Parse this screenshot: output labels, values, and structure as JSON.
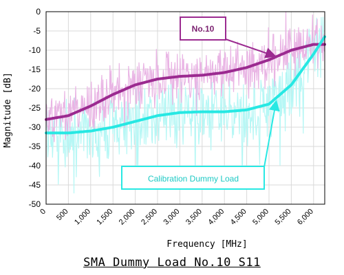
{
  "chart_data": {
    "type": "line",
    "xlabel": "Frequency [MHz]",
    "ylabel": "Magnitude [dB]",
    "xlim": [
      0,
      6250
    ],
    "ylim": [
      -50,
      0
    ],
    "x_ticks": [
      0,
      500,
      1000,
      1500,
      2000,
      2500,
      3000,
      3500,
      4000,
      4500,
      5000,
      5500,
      6000
    ],
    "x_tick_labels": [
      "0",
      "500",
      "1,000",
      "1,500",
      "2,000",
      "2,500",
      "3,000",
      "3,500",
      "4,000",
      "4,500",
      "5,000",
      "5,500",
      "6,000"
    ],
    "y_ticks": [
      0,
      -5,
      -10,
      -15,
      -20,
      -25,
      -30,
      -35,
      -40,
      -45,
      -50
    ],
    "y_tick_labels": [
      "0",
      "-5",
      "-10",
      "-15",
      "-20",
      "-25",
      "-30",
      "-35",
      "-40",
      "-45",
      "-50"
    ],
    "grid": true,
    "series": [
      {
        "name": "No.10",
        "color": "#9b2a90",
        "raw_color": "#e9b4e4",
        "x": [
          0,
          500,
          1000,
          1500,
          2000,
          2500,
          3000,
          3500,
          4000,
          4500,
          5000,
          5500,
          6000,
          6250
        ],
        "values": [
          -28,
          -27,
          -24.5,
          -21.5,
          -19,
          -17.5,
          -16.8,
          -16.5,
          -15.8,
          -14.5,
          -12.5,
          -10,
          -8.5,
          -8.5
        ]
      },
      {
        "name": "Calibration Dummy Load",
        "color": "#27e8e3",
        "raw_color": "#b6f7f5",
        "x": [
          0,
          500,
          1000,
          1500,
          2000,
          2500,
          3000,
          3500,
          4000,
          4500,
          5000,
          5500,
          6000,
          6250
        ],
        "values": [
          -31.5,
          -31.5,
          -31,
          -30,
          -28.5,
          -27,
          -26.2,
          -26,
          -26,
          -25.5,
          -24,
          -19,
          -11,
          -6.5
        ]
      }
    ],
    "annotations": [
      "No.10",
      "Calibration Dummy Load"
    ]
  },
  "bottom_title": "SMA Dummy Load No.10 S11"
}
